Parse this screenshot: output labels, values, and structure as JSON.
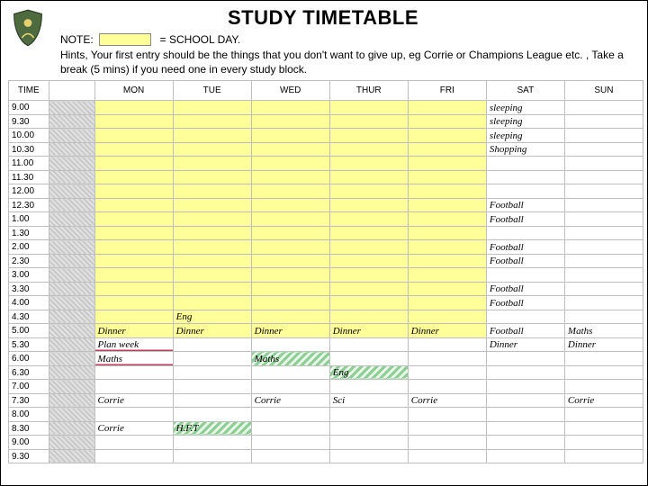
{
  "colors": {
    "schoolday_swatch": "#ffff99",
    "hatched_green_fg": "#8fcf95",
    "hatched_green_bg": "#e9f8ea",
    "accent_underline": "#c04060",
    "grid_border": "#bfbfbf",
    "spacer_fg": "#c9c9c9",
    "spacer_bg": "#e2e2e2"
  },
  "header": {
    "title": "STUDY TIMETABLE",
    "note_label": "NOTE:",
    "note_text": "= SCHOOL DAY.",
    "hints": "Hints, Your first entry should be the things that you don't want to give up, eg Corrie or Champions League etc. , Take a break (5 mins) if you need one in every study block."
  },
  "timetable": {
    "time_header": "TIME",
    "days": [
      "MON",
      "TUE",
      "WED",
      "THUR",
      "FRI",
      "SAT",
      "SUN"
    ],
    "times": [
      "9.00",
      "9.30",
      "10.00",
      "10.30",
      "11.00",
      "11.30",
      "12.00",
      "12.30",
      "1.00",
      "1.30",
      "2.00",
      "2.30",
      "3.00",
      "3.30",
      "4.00",
      "4.30",
      "5.00",
      "5.30",
      "6.00",
      "6.30",
      "7.00",
      "7.30",
      "8.00",
      "8.30",
      "9.00",
      "9.30"
    ],
    "school_rows_end_index": 16,
    "cells": {
      "sat": {
        "0": "sleeping",
        "1": "sleeping",
        "2": "sleeping",
        "3": "Shopping",
        "4": "",
        "7": "Football",
        "8": "Football",
        "9": "",
        "10": "Football",
        "11": "Football",
        "12": "",
        "13": "Football",
        "14": "Football",
        "15": "",
        "16": "Football",
        "17": "Dinner"
      },
      "sun": {
        "16": "Maths",
        "17": "Dinner",
        "21": "Corrie"
      },
      "mon": {
        "16": "Dinner",
        "17": "Plan week",
        "18": "Maths",
        "21": "Corrie",
        "23": "Corrie"
      },
      "tue": {
        "15": "Eng",
        "16": "Dinner",
        "23": "H.F.T"
      },
      "wed": {
        "16": "Dinner",
        "18": "Maths",
        "21": "Corrie"
      },
      "thur": {
        "16": "Dinner",
        "18": "",
        "19": "Eng",
        "21": "Sci"
      },
      "fri": {
        "16": "Dinner",
        "21": "Corrie"
      }
    },
    "styles": {
      "hatched_green": [
        "tue.15",
        "wed.18",
        "thur.19",
        "tue.23"
      ],
      "underline": [
        "mon.17",
        "mon.18"
      ],
      "schoolday_block": true
    }
  }
}
